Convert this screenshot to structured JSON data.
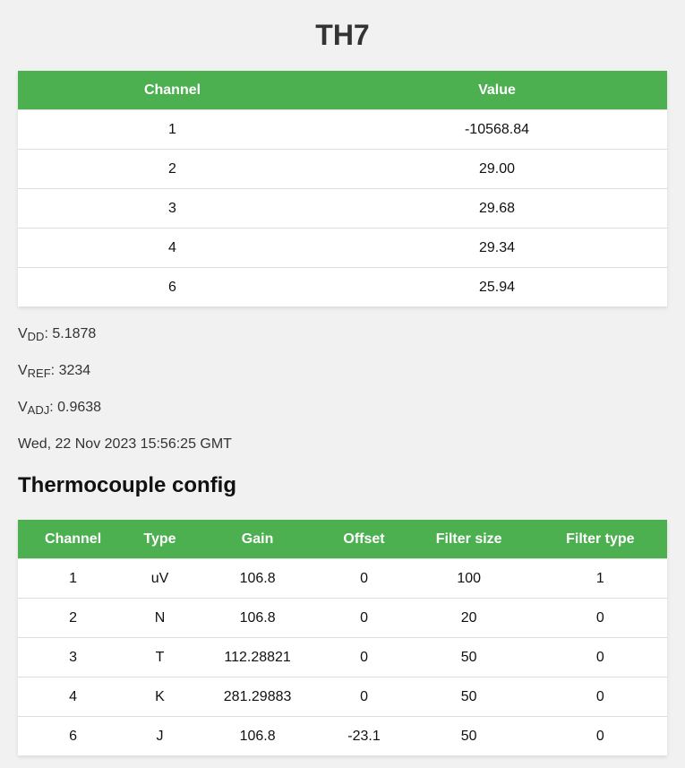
{
  "title": "TH7",
  "readings": {
    "headers": [
      "Channel",
      "Value"
    ],
    "rows": [
      [
        "1",
        "-10568.84"
      ],
      [
        "2",
        "29.00"
      ],
      [
        "3",
        "29.68"
      ],
      [
        "4",
        "29.34"
      ],
      [
        "6",
        "25.94"
      ]
    ]
  },
  "vdd": {
    "label": "V",
    "sub": "DD",
    "value": ": 5.1878"
  },
  "vref": {
    "label": "V",
    "sub": "REF",
    "value": ": 3234"
  },
  "vadj": {
    "label": "V",
    "sub": "ADJ",
    "value": ": 0.9638"
  },
  "timestamp": "Wed, 22 Nov 2023 15:56:25 GMT",
  "config_title": "Thermocouple config",
  "config": {
    "headers": [
      "Channel",
      "Type",
      "Gain",
      "Offset",
      "Filter size",
      "Filter type"
    ],
    "rows": [
      [
        "1",
        "uV",
        "106.8",
        "0",
        "100",
        "1"
      ],
      [
        "2",
        "N",
        "106.8",
        "0",
        "20",
        "0"
      ],
      [
        "3",
        "T",
        "112.28821",
        "0",
        "50",
        "0"
      ],
      [
        "4",
        "K",
        "281.29883",
        "0",
        "50",
        "0"
      ],
      [
        "6",
        "J",
        "106.8",
        "-23.1",
        "50",
        "0"
      ]
    ]
  },
  "colors": {
    "header": "#4caf50",
    "background": "#f1f1f1"
  }
}
